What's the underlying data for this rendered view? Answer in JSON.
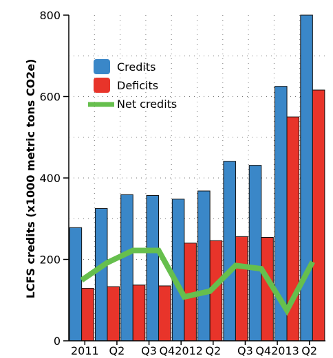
{
  "chart_data": {
    "type": "bar",
    "categories": [
      "2011",
      "Q2",
      "Q3",
      "Q4",
      "2012",
      "Q2",
      "Q3",
      "Q4",
      "2013",
      "Q2"
    ],
    "category_display": [
      "2011",
      "Q2",
      "Q3",
      "Q42012",
      "Q2",
      "Q3",
      "Q42013",
      "Q2"
    ],
    "series": [
      {
        "name": "Credits",
        "type": "bar",
        "color": "#3a87c8",
        "values": [
          278,
          325,
          359,
          357,
          348,
          368,
          441,
          431,
          625,
          810
        ]
      },
      {
        "name": "Deficits",
        "type": "bar",
        "color": "#e8342a",
        "values": [
          129,
          133,
          137,
          135,
          240,
          246,
          256,
          254,
          550,
          616
        ]
      },
      {
        "name": "Net credits",
        "type": "line",
        "color": "#66bf4d",
        "values": [
          149,
          192,
          222,
          222,
          108,
          122,
          185,
          177,
          75,
          194
        ]
      }
    ],
    "title": "",
    "xlabel": "",
    "ylabel": "LCFS credits (x1000 metric tons CO2e)",
    "ylim": [
      0,
      800
    ],
    "yticks": [
      0,
      200,
      400,
      600,
      800
    ],
    "grid": true,
    "legend_position": "top-left"
  }
}
